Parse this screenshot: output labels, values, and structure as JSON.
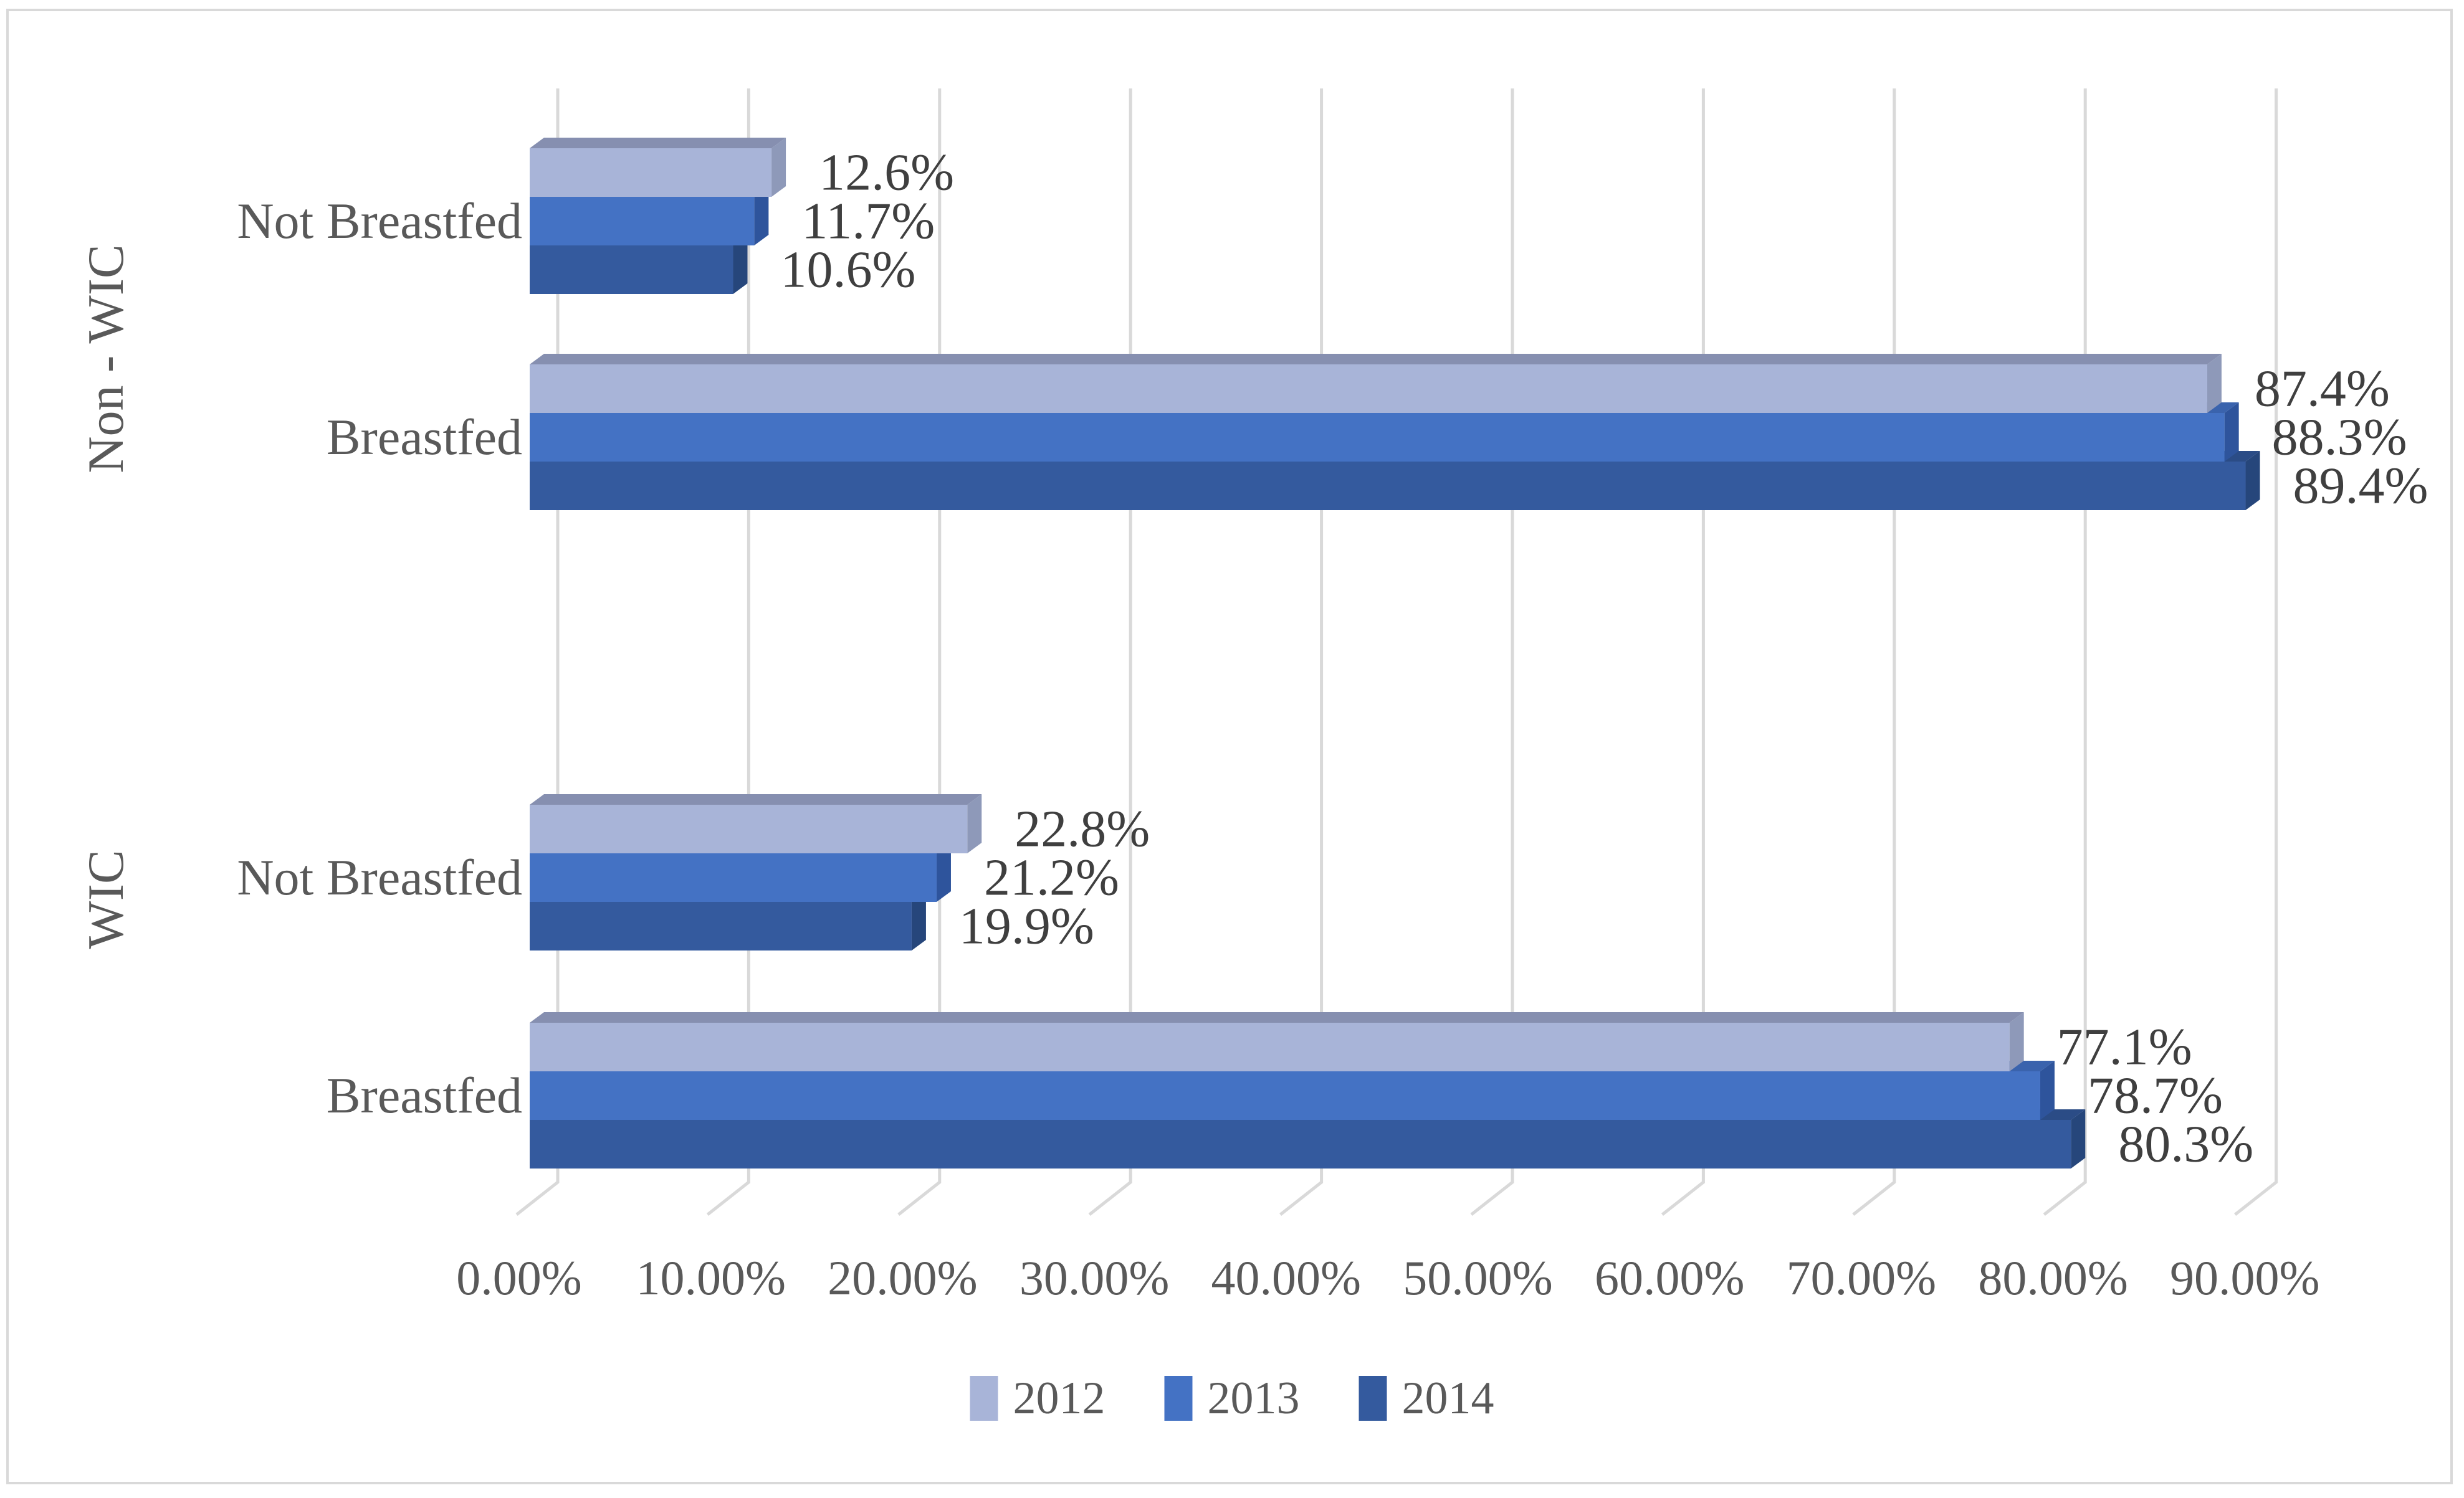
{
  "figure": {
    "background": "#ffffff",
    "border_color": "#d9d9d9"
  },
  "chart_data": {
    "type": "bar",
    "orientation": "horizontal",
    "style": "3d",
    "title": "",
    "xlabel": "",
    "ylabel": "",
    "xlim": [
      0,
      90
    ],
    "grid": true,
    "grid_color": "#d9d9d9",
    "text_color": "#595959",
    "data_label_color": "#3f3f3f",
    "legend_position": "bottom",
    "x_ticks": [
      "0.00%",
      "10.00%",
      "20.00%",
      "30.00%",
      "40.00%",
      "50.00%",
      "60.00%",
      "70.00%",
      "80.00%",
      "90.00%"
    ],
    "series": [
      {
        "name": "2012",
        "color": "#a8b4d8",
        "top_color": "#868fb0",
        "side_color": "#8e99b9"
      },
      {
        "name": "2013",
        "color": "#4472c4",
        "top_color": "#3a63ad",
        "side_color": "#2e549c"
      },
      {
        "name": "2014",
        "color": "#345a9e",
        "top_color": "#2b4c86",
        "side_color": "#26467b"
      }
    ],
    "sections": [
      {
        "label": "Non - WIC",
        "categories": [
          {
            "label": "Not Breastfed",
            "values": [
              12.6,
              11.7,
              10.6
            ],
            "value_labels": [
              "12.6%",
              "11.7%",
              "10.6%"
            ]
          },
          {
            "label": "Breastfed",
            "values": [
              87.4,
              88.3,
              89.4
            ],
            "value_labels": [
              "87.4%",
              "88.3%",
              "89.4%"
            ]
          }
        ]
      },
      {
        "label": "WIC",
        "categories": [
          {
            "label": "Not Breastfed",
            "values": [
              22.8,
              21.2,
              19.9
            ],
            "value_labels": [
              "22.8%",
              "21.2%",
              "19.9%"
            ]
          },
          {
            "label": "Breastfed",
            "values": [
              77.1,
              78.7,
              80.3
            ],
            "value_labels": [
              "77.1%",
              "78.7%",
              "80.3%"
            ]
          }
        ]
      }
    ]
  }
}
